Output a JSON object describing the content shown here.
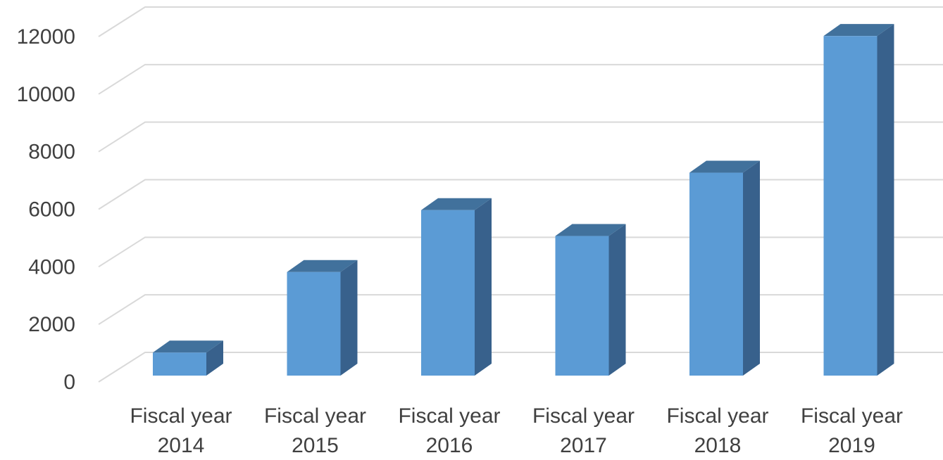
{
  "chart_data": {
    "type": "bar",
    "categories": [
      [
        "Fiscal year",
        "2014"
      ],
      [
        "Fiscal year",
        "2015"
      ],
      [
        "Fiscal year",
        "2016"
      ],
      [
        "Fiscal year",
        "2017"
      ],
      [
        "Fiscal year",
        "2018"
      ],
      [
        "Fiscal year",
        "2019"
      ]
    ],
    "values": [
      800,
      3600,
      5750,
      4850,
      7050,
      11800
    ],
    "ylim": [
      0,
      12000
    ],
    "yticks": [
      "0",
      "2000",
      "4000",
      "6000",
      "8000",
      "10000",
      "12000"
    ],
    "title": "",
    "xlabel": "",
    "ylabel": "",
    "grid": true,
    "legend": "none",
    "style": "3d-column",
    "colors": {
      "front": "#5b9bd5",
      "top": "#41719c",
      "side": "#38618c",
      "grid": "#d9d9d9",
      "text": "#404040"
    }
  }
}
